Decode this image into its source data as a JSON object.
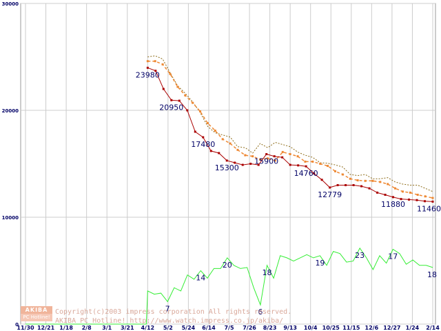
{
  "chart_data": {
    "type": "line",
    "title": "",
    "xlabel": "",
    "ylabel": "",
    "ylim": [
      0,
      30000
    ],
    "y_ticks": [
      "30000",
      "20000",
      "10000",
      "0"
    ],
    "x_tick_labels": [
      "11/30",
      "12/21",
      "1/18",
      "2/8",
      "3/1",
      "3/21",
      "4/12",
      "5/2",
      "5/24",
      "6/14",
      "7/5",
      "7/26",
      "8/23",
      "9/13",
      "10/4",
      "10/25",
      "11/15",
      "12/6",
      "12/27",
      "1/24",
      "2/14"
    ],
    "grid": true,
    "series": [
      {
        "name": "price_max",
        "style": "dotted",
        "color": "#8b6914",
        "values": [
          25000,
          25100,
          24800,
          23500,
          22300,
          21600,
          20800,
          19800,
          18500,
          17900,
          17700,
          17500,
          16600,
          16500,
          16000,
          16900,
          16500,
          17000,
          16800,
          16600,
          16100,
          15800,
          15600,
          15100,
          15050,
          14900,
          14700,
          14000,
          13900,
          14000,
          13600,
          13600,
          13700,
          13300,
          13100,
          13000,
          13000,
          12700,
          12400
        ]
      },
      {
        "name": "price_avg",
        "style": "dashed-markers",
        "color": "#ee8833",
        "values": [
          24600,
          24600,
          24300,
          23400,
          22200,
          21400,
          20700,
          19900,
          18800,
          18100,
          17300,
          16900,
          16300,
          15800,
          15700,
          15400,
          15500,
          15300,
          16100,
          15900,
          15700,
          15200,
          15200,
          15000,
          14800,
          14300,
          14000,
          13600,
          13450,
          13400,
          13400,
          13300,
          13100,
          12700,
          12400,
          12300,
          12100,
          11950,
          11800
        ]
      },
      {
        "name": "price_min",
        "style": "solid-markers",
        "color": "#aa0000",
        "values": [
          23980,
          23700,
          22000,
          20950,
          20900,
          20000,
          18000,
          17480,
          16200,
          16000,
          15300,
          15100,
          14900,
          15000,
          14900,
          15900,
          15700,
          15600,
          14900,
          14850,
          14760,
          14100,
          13500,
          12779,
          13000,
          13000,
          13000,
          12900,
          12700,
          12300,
          12100,
          11880,
          11700,
          11650,
          11600,
          11500,
          11460
        ]
      },
      {
        "name": "shop_count",
        "style": "solid",
        "color": "#33ee33",
        "values": [
          0,
          0,
          0,
          0,
          0,
          0,
          3100,
          2800,
          2900,
          2100,
          3400,
          3100,
          4600,
          4200,
          5000,
          4300,
          5200,
          5200,
          6200,
          5500,
          5200,
          5300,
          3400,
          1800,
          5500,
          4300,
          6400,
          6200,
          5900,
          6200,
          6500,
          6200,
          6400,
          5500,
          6800,
          6600,
          5800,
          5900,
          7100,
          6200,
          5100,
          6400,
          5700,
          7000,
          6600,
          5600,
          6000,
          5500,
          5500,
          5300
        ]
      }
    ],
    "min_labels": [
      {
        "text": "23980",
        "value": 23980
      },
      {
        "text": "20950",
        "value": 20950
      },
      {
        "text": "17480",
        "value": 17480
      },
      {
        "text": "15300",
        "value": 15300
      },
      {
        "text": "15900",
        "value": 15900
      },
      {
        "text": "14760",
        "value": 14760
      },
      {
        "text": "12779",
        "value": 12779
      },
      {
        "text": "11880",
        "value": 11880
      },
      {
        "text": "11460",
        "value": 11460
      }
    ],
    "count_labels": [
      {
        "text": "7",
        "value": 7
      },
      {
        "text": "14",
        "value": 14
      },
      {
        "text": "20",
        "value": 20
      },
      {
        "text": "6",
        "value": 6
      },
      {
        "text": "18",
        "value": 18
      },
      {
        "text": "19",
        "value": 19
      },
      {
        "text": "23",
        "value": 23
      },
      {
        "text": "17",
        "value": 17
      },
      {
        "text": "18",
        "value": 18
      }
    ]
  },
  "footer": {
    "logo_top": "AKIBA",
    "logo_bottom": "PC Hotline!",
    "copyright": "Copyright(c)2003 impress corporation All rights reserved.",
    "site": "AKIBA PC Hotline! http://www.watch.impress.co.jp/akiba/"
  }
}
